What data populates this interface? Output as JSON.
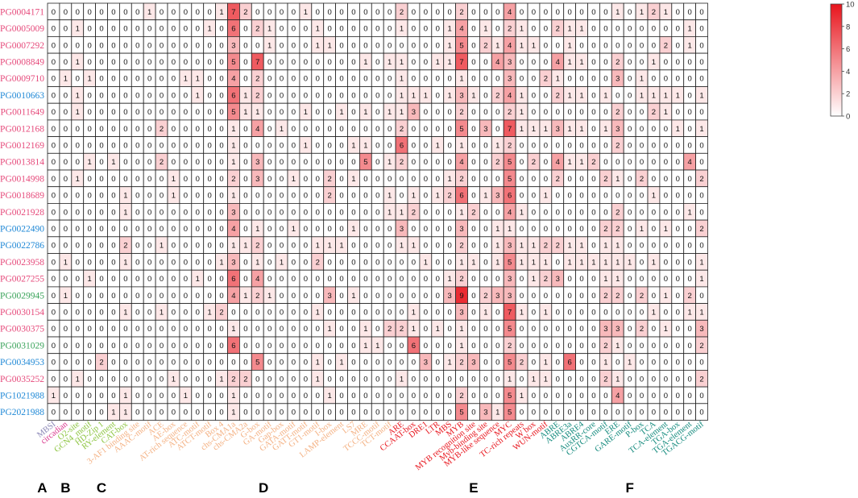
{
  "colors": {
    "low": "#ffffff",
    "high": "#e8141c",
    "group_a": "#8a86b6",
    "group_b": "#d9368c",
    "group_c": "#8cc43f",
    "group_d": "#f4b183",
    "group_e": "#e8141c",
    "group_f": "#138a7d",
    "row_pink": "#e64a7b",
    "row_blue": "#1f88d6",
    "row_green": "#3aa35a"
  },
  "chart_data": {
    "type": "heatmap",
    "rows": [
      "PG0004171",
      "PG0005009",
      "PG0007292",
      "PG0008849",
      "PG0009710",
      "PG0010663",
      "PG0011649",
      "PG0012168",
      "PG0012169",
      "PG0013814",
      "PG0014998",
      "PG0018689",
      "PG0021928",
      "PG0022490",
      "PG0022786",
      "PG0023958",
      "PG0027255",
      "PG0029945",
      "PG0030154",
      "PG0030375",
      "PG0031029",
      "PG0034953",
      "PG0035252",
      "PG1021988",
      "PG2021988"
    ],
    "row_colors": [
      "pink",
      "pink",
      "pink",
      "pink",
      "pink",
      "blue",
      "pink",
      "pink",
      "pink",
      "pink",
      "pink",
      "pink",
      "pink",
      "blue",
      "blue",
      "pink",
      "pink",
      "green",
      "pink",
      "pink",
      "green",
      "blue",
      "pink",
      "blue",
      "blue"
    ],
    "columns": [
      "MBSI",
      "circadian",
      "O2-site",
      "GCN4_motif",
      "HD-Zip 1",
      "RY-element",
      "CAT-box",
      "3-AF1 binding site",
      "AAAC-motif",
      "ACE",
      "AE-box",
      "AT-rich sequence",
      "ATC-motif",
      "ATCT-motif",
      "Box 4",
      "chs-CMA1a",
      "chs-CMA2a",
      "G-box",
      "GA-motif",
      "Gap-box",
      "GATA-motif",
      "GATT-motif",
      "GT1-motif",
      "I-box",
      "LAMP-element",
      "LS7",
      "MRE",
      "TCCC-motif",
      "TCT-motif",
      "ARE",
      "CCAAT-box",
      "DRE1",
      "LTR",
      "MBS",
      "MYB",
      "MYB recognition site",
      "Myb-binding site",
      "MYB-like sequence",
      "MYC",
      "TC-rich repeats",
      "W box",
      "WUN-motif",
      "ABRE",
      "ABRE3a",
      "ABRE4",
      "AuxRR-core",
      "CGTCA-motif",
      "ERE",
      "GARE-motif",
      "P-box",
      "TCA",
      "TCA-element",
      "TGA-box",
      "TGA-element",
      "TGACG-motif"
    ],
    "column_groups": [
      "a",
      "b",
      "c",
      "c",
      "c",
      "c",
      "c",
      "d",
      "d",
      "d",
      "d",
      "d",
      "d",
      "d",
      "d",
      "d",
      "d",
      "d",
      "d",
      "d",
      "d",
      "d",
      "d",
      "d",
      "d",
      "d",
      "d",
      "d",
      "d",
      "e",
      "e",
      "e",
      "e",
      "e",
      "e",
      "e",
      "e",
      "e",
      "e",
      "e",
      "e",
      "e",
      "f",
      "f",
      "f",
      "f",
      "f",
      "f",
      "f",
      "f",
      "f",
      "f",
      "f",
      "f",
      "f"
    ],
    "values": [
      [
        0,
        0,
        0,
        0,
        0,
        0,
        0,
        0,
        1,
        0,
        0,
        0,
        0,
        0,
        1,
        7,
        2,
        0,
        0,
        0,
        0,
        1,
        0,
        0,
        0,
        0,
        0,
        0,
        0,
        2,
        0,
        0,
        0,
        0,
        2,
        0,
        0,
        0,
        4,
        0,
        0,
        0,
        0,
        0,
        0,
        0,
        0,
        1,
        0,
        1,
        2,
        1,
        0,
        0,
        0
      ],
      [
        0,
        0,
        1,
        0,
        0,
        0,
        0,
        0,
        0,
        0,
        0,
        0,
        0,
        1,
        0,
        6,
        0,
        2,
        1,
        0,
        0,
        0,
        1,
        0,
        0,
        0,
        0,
        0,
        0,
        1,
        0,
        0,
        0,
        1,
        4,
        0,
        1,
        0,
        2,
        1,
        0,
        0,
        2,
        1,
        1,
        0,
        0,
        0,
        0,
        0,
        0,
        0,
        0,
        1,
        0
      ],
      [
        0,
        0,
        0,
        0,
        0,
        0,
        0,
        0,
        0,
        0,
        0,
        0,
        0,
        0,
        0,
        3,
        0,
        0,
        1,
        0,
        0,
        0,
        1,
        1,
        0,
        0,
        0,
        0,
        0,
        0,
        0,
        0,
        0,
        1,
        5,
        0,
        2,
        1,
        4,
        1,
        1,
        0,
        0,
        1,
        0,
        0,
        0,
        0,
        0,
        0,
        0,
        2,
        0,
        1,
        0
      ],
      [
        0,
        0,
        1,
        0,
        0,
        0,
        0,
        0,
        0,
        0,
        0,
        0,
        0,
        0,
        0,
        5,
        0,
        7,
        0,
        0,
        0,
        0,
        0,
        0,
        0,
        0,
        1,
        0,
        1,
        1,
        0,
        0,
        1,
        1,
        7,
        0,
        0,
        4,
        3,
        0,
        0,
        0,
        4,
        1,
        1,
        0,
        0,
        2,
        0,
        0,
        1,
        0,
        0,
        0,
        0
      ],
      [
        0,
        1,
        0,
        1,
        0,
        0,
        0,
        0,
        0,
        0,
        0,
        1,
        1,
        0,
        0,
        4,
        0,
        2,
        0,
        0,
        0,
        0,
        0,
        0,
        0,
        0,
        0,
        0,
        0,
        1,
        0,
        0,
        0,
        0,
        1,
        0,
        0,
        0,
        3,
        0,
        0,
        2,
        1,
        0,
        0,
        0,
        0,
        3,
        0,
        1,
        0,
        0,
        0,
        0,
        0
      ],
      [
        0,
        0,
        1,
        0,
        0,
        0,
        0,
        0,
        0,
        0,
        0,
        0,
        1,
        0,
        0,
        6,
        1,
        2,
        0,
        0,
        0,
        0,
        0,
        0,
        0,
        0,
        0,
        0,
        0,
        1,
        1,
        1,
        0,
        1,
        3,
        1,
        0,
        2,
        4,
        1,
        0,
        0,
        2,
        1,
        1,
        0,
        1,
        0,
        0,
        1,
        1,
        1,
        1,
        0,
        1
      ],
      [
        0,
        0,
        1,
        0,
        0,
        0,
        0,
        0,
        0,
        0,
        0,
        0,
        0,
        0,
        0,
        5,
        1,
        1,
        0,
        0,
        0,
        1,
        0,
        0,
        1,
        0,
        1,
        0,
        1,
        1,
        3,
        0,
        0,
        0,
        2,
        0,
        0,
        0,
        2,
        1,
        0,
        0,
        0,
        0,
        0,
        0,
        0,
        2,
        0,
        0,
        2,
        1,
        0,
        0,
        0
      ],
      [
        0,
        0,
        0,
        0,
        0,
        0,
        0,
        0,
        0,
        2,
        0,
        0,
        0,
        0,
        0,
        1,
        0,
        4,
        0,
        1,
        0,
        0,
        0,
        0,
        0,
        0,
        0,
        0,
        0,
        2,
        0,
        0,
        0,
        0,
        5,
        0,
        3,
        0,
        7,
        1,
        1,
        1,
        3,
        1,
        1,
        0,
        1,
        3,
        0,
        0,
        0,
        0,
        1,
        0,
        1
      ],
      [
        0,
        0,
        0,
        0,
        0,
        0,
        0,
        0,
        0,
        0,
        0,
        0,
        0,
        0,
        0,
        1,
        0,
        0,
        0,
        0,
        0,
        1,
        0,
        0,
        0,
        1,
        1,
        0,
        0,
        6,
        0,
        0,
        1,
        0,
        1,
        0,
        0,
        1,
        2,
        0,
        0,
        0,
        0,
        0,
        0,
        0,
        0,
        2,
        0,
        0,
        0,
        0,
        0,
        0,
        0
      ],
      [
        0,
        0,
        0,
        1,
        0,
        1,
        0,
        0,
        0,
        2,
        0,
        0,
        0,
        0,
        0,
        1,
        0,
        3,
        0,
        0,
        0,
        0,
        0,
        0,
        0,
        0,
        5,
        0,
        1,
        2,
        0,
        0,
        0,
        0,
        4,
        0,
        0,
        2,
        5,
        0,
        2,
        0,
        4,
        1,
        1,
        2,
        0,
        0,
        0,
        0,
        0,
        0,
        0,
        4,
        0
      ],
      [
        0,
        0,
        1,
        0,
        0,
        0,
        0,
        0,
        0,
        0,
        1,
        0,
        0,
        0,
        0,
        2,
        0,
        3,
        0,
        0,
        1,
        0,
        0,
        2,
        0,
        1,
        0,
        0,
        0,
        0,
        0,
        0,
        0,
        1,
        2,
        0,
        0,
        0,
        5,
        0,
        0,
        0,
        2,
        0,
        0,
        0,
        2,
        1,
        0,
        2,
        0,
        0,
        0,
        0,
        2
      ],
      [
        0,
        0,
        0,
        0,
        0,
        0,
        1,
        0,
        0,
        0,
        1,
        0,
        0,
        0,
        0,
        1,
        0,
        0,
        0,
        0,
        0,
        0,
        0,
        2,
        0,
        0,
        0,
        0,
        1,
        0,
        1,
        0,
        1,
        2,
        6,
        0,
        1,
        3,
        6,
        0,
        0,
        1,
        0,
        0,
        0,
        0,
        0,
        0,
        0,
        0,
        1,
        0,
        0,
        0,
        0
      ],
      [
        0,
        0,
        0,
        0,
        0,
        0,
        1,
        0,
        0,
        0,
        0,
        0,
        0,
        0,
        0,
        3,
        0,
        0,
        0,
        0,
        0,
        0,
        0,
        0,
        0,
        0,
        0,
        0,
        1,
        1,
        2,
        0,
        0,
        0,
        1,
        2,
        0,
        0,
        4,
        1,
        0,
        0,
        0,
        0,
        0,
        0,
        0,
        2,
        0,
        0,
        0,
        0,
        0,
        1,
        0
      ],
      [
        0,
        0,
        0,
        0,
        0,
        0,
        0,
        0,
        0,
        0,
        0,
        0,
        0,
        0,
        0,
        4,
        0,
        1,
        0,
        0,
        1,
        0,
        0,
        0,
        0,
        1,
        0,
        0,
        0,
        3,
        0,
        0,
        0,
        0,
        3,
        0,
        0,
        1,
        1,
        0,
        0,
        0,
        0,
        0,
        0,
        0,
        2,
        2,
        0,
        1,
        0,
        1,
        0,
        0,
        2
      ],
      [
        0,
        0,
        0,
        0,
        0,
        0,
        2,
        0,
        0,
        1,
        0,
        0,
        0,
        0,
        0,
        1,
        1,
        2,
        0,
        0,
        0,
        0,
        1,
        1,
        1,
        0,
        0,
        0,
        0,
        1,
        1,
        0,
        0,
        0,
        2,
        0,
        0,
        1,
        3,
        1,
        1,
        2,
        2,
        1,
        1,
        0,
        1,
        1,
        0,
        0,
        0,
        0,
        0,
        0,
        0
      ],
      [
        0,
        1,
        0,
        0,
        0,
        0,
        1,
        0,
        0,
        0,
        0,
        0,
        0,
        0,
        1,
        3,
        0,
        1,
        0,
        1,
        0,
        0,
        2,
        0,
        0,
        0,
        0,
        0,
        0,
        0,
        0,
        1,
        0,
        0,
        1,
        1,
        0,
        1,
        5,
        1,
        1,
        1,
        0,
        1,
        1,
        1,
        1,
        1,
        1,
        0,
        1,
        0,
        0,
        0,
        1
      ],
      [
        0,
        0,
        0,
        1,
        0,
        0,
        0,
        0,
        0,
        0,
        0,
        0,
        1,
        0,
        0,
        6,
        0,
        4,
        0,
        0,
        0,
        0,
        0,
        0,
        0,
        0,
        0,
        0,
        0,
        0,
        0,
        0,
        0,
        1,
        2,
        0,
        0,
        0,
        3,
        0,
        1,
        2,
        3,
        0,
        0,
        0,
        1,
        1,
        0,
        0,
        0,
        0,
        0,
        0,
        1
      ],
      [
        0,
        1,
        0,
        0,
        0,
        0,
        0,
        0,
        0,
        0,
        0,
        0,
        0,
        0,
        0,
        4,
        1,
        2,
        1,
        0,
        0,
        0,
        0,
        3,
        0,
        1,
        0,
        0,
        0,
        0,
        0,
        0,
        0,
        3,
        9,
        0,
        2,
        3,
        3,
        0,
        0,
        0,
        0,
        0,
        0,
        0,
        2,
        2,
        0,
        2,
        0,
        1,
        0,
        2,
        0
      ],
      [
        0,
        0,
        0,
        0,
        0,
        0,
        1,
        0,
        0,
        1,
        0,
        0,
        0,
        1,
        2,
        0,
        0,
        0,
        0,
        0,
        0,
        0,
        1,
        0,
        0,
        0,
        0,
        0,
        0,
        0,
        1,
        0,
        0,
        0,
        3,
        0,
        1,
        0,
        7,
        1,
        0,
        1,
        0,
        0,
        0,
        0,
        0,
        0,
        0,
        0,
        1,
        0,
        0,
        1,
        1
      ],
      [
        0,
        0,
        0,
        0,
        0,
        0,
        0,
        0,
        0,
        0,
        0,
        0,
        0,
        0,
        0,
        1,
        0,
        0,
        0,
        0,
        0,
        0,
        0,
        1,
        0,
        0,
        1,
        0,
        2,
        2,
        1,
        0,
        1,
        0,
        1,
        0,
        0,
        0,
        5,
        0,
        0,
        0,
        0,
        0,
        0,
        0,
        3,
        3,
        0,
        2,
        0,
        1,
        0,
        0,
        3
      ],
      [
        0,
        0,
        0,
        0,
        0,
        0,
        0,
        0,
        0,
        0,
        0,
        0,
        0,
        0,
        0,
        6,
        0,
        0,
        0,
        0,
        0,
        0,
        0,
        0,
        0,
        0,
        1,
        1,
        0,
        0,
        6,
        0,
        0,
        0,
        1,
        0,
        0,
        0,
        2,
        0,
        0,
        0,
        0,
        0,
        0,
        0,
        2,
        1,
        0,
        0,
        0,
        0,
        0,
        0,
        2
      ],
      [
        0,
        0,
        0,
        0,
        2,
        0,
        0,
        0,
        0,
        0,
        0,
        0,
        0,
        0,
        0,
        0,
        0,
        5,
        0,
        0,
        0,
        0,
        1,
        0,
        1,
        0,
        0,
        0,
        0,
        0,
        0,
        3,
        0,
        1,
        2,
        3,
        0,
        0,
        5,
        2,
        0,
        1,
        0,
        6,
        0,
        0,
        1,
        0,
        1,
        0,
        0,
        0,
        0,
        0,
        0
      ],
      [
        0,
        0,
        1,
        0,
        0,
        0,
        0,
        0,
        0,
        0,
        1,
        0,
        0,
        0,
        1,
        2,
        2,
        0,
        0,
        0,
        0,
        0,
        1,
        0,
        0,
        0,
        0,
        0,
        0,
        1,
        0,
        0,
        0,
        0,
        0,
        0,
        0,
        0,
        1,
        0,
        1,
        1,
        0,
        0,
        0,
        0,
        2,
        1,
        0,
        0,
        0,
        0,
        0,
        0,
        2
      ],
      [
        1,
        0,
        0,
        0,
        0,
        0,
        1,
        0,
        0,
        0,
        0,
        1,
        0,
        0,
        0,
        1,
        0,
        0,
        0,
        0,
        0,
        0,
        0,
        1,
        0,
        0,
        0,
        0,
        0,
        0,
        0,
        0,
        0,
        0,
        2,
        0,
        0,
        0,
        5,
        1,
        0,
        0,
        0,
        0,
        0,
        0,
        0,
        4,
        0,
        0,
        0,
        0,
        0,
        0,
        0
      ],
      [
        0,
        0,
        0,
        0,
        0,
        1,
        1,
        0,
        0,
        0,
        0,
        0,
        0,
        0,
        0,
        1,
        0,
        0,
        0,
        0,
        0,
        0,
        0,
        0,
        0,
        0,
        0,
        0,
        0,
        0,
        0,
        0,
        0,
        0,
        5,
        0,
        3,
        1,
        5,
        0,
        0,
        0,
        0,
        0,
        0,
        0,
        0,
        0,
        0,
        0,
        0,
        0,
        0,
        0,
        0
      ]
    ],
    "color_range": [
      0,
      10
    ],
    "colorbar_ticks": [
      0,
      2,
      4,
      6,
      8,
      10
    ],
    "group_labels": [
      "A",
      "B",
      "C",
      "D",
      "E",
      "F"
    ]
  }
}
